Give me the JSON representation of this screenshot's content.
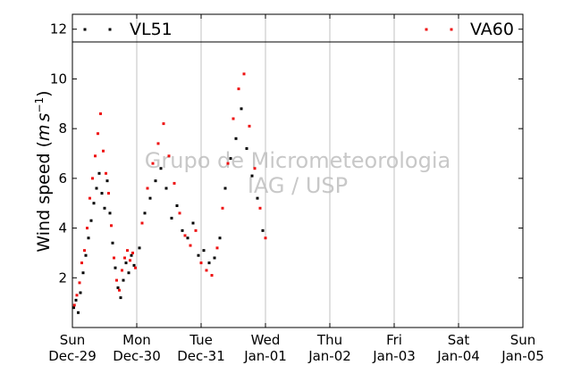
{
  "chart_data": {
    "type": "scatter",
    "ylabel": "Wind speed ($m s^{-1}$)",
    "ylabel_parts": {
      "text": "Wind speed (",
      "unit_m": "m",
      "unit_s": "s",
      "exponent": "−1",
      "close": ")"
    },
    "ylim": [
      0,
      12.6
    ],
    "yticks": [
      2,
      4,
      6,
      8,
      10,
      12
    ],
    "xlim": [
      "2019-12-29",
      "2020-01-05"
    ],
    "xtick_labels": [
      [
        "Sun",
        "Dec-29"
      ],
      [
        "Mon",
        "Dec-30"
      ],
      [
        "Tue",
        "Dec-31"
      ],
      [
        "Wed",
        "Jan-01"
      ],
      [
        "Thu",
        "Jan-02"
      ],
      [
        "Fri",
        "Jan-03"
      ],
      [
        "Sat",
        "Jan-04"
      ],
      [
        "Sun",
        "Jan-05"
      ]
    ],
    "grid": "vertical",
    "legend_placement": "top",
    "watermark": [
      "Grupo de Micrometeorologia",
      "IAG / USP"
    ],
    "series": [
      {
        "name": "VL51",
        "color": "#000000",
        "points": [
          [
            "2019-12-29 00:30",
            0.8
          ],
          [
            "2019-12-29 01:20",
            1.1
          ],
          [
            "2019-12-29 02:10",
            0.6
          ],
          [
            "2019-12-29 03:00",
            1.4
          ],
          [
            "2019-12-29 04:00",
            2.2
          ],
          [
            "2019-12-29 05:00",
            2.9
          ],
          [
            "2019-12-29 06:00",
            3.6
          ],
          [
            "2019-12-29 07:00",
            4.3
          ],
          [
            "2019-12-29 08:00",
            5.0
          ],
          [
            "2019-12-29 09:00",
            5.6
          ],
          [
            "2019-12-29 10:00",
            6.2
          ],
          [
            "2019-12-29 11:00",
            5.4
          ],
          [
            "2019-12-29 12:00",
            4.8
          ],
          [
            "2019-12-29 13:00",
            5.9
          ],
          [
            "2019-12-29 14:00",
            4.6
          ],
          [
            "2019-12-29 15:00",
            3.4
          ],
          [
            "2019-12-29 16:00",
            2.4
          ],
          [
            "2019-12-29 17:00",
            1.6
          ],
          [
            "2019-12-29 18:00",
            1.2
          ],
          [
            "2019-12-29 19:00",
            1.9
          ],
          [
            "2019-12-29 20:00",
            2.6
          ],
          [
            "2019-12-29 21:00",
            2.2
          ],
          [
            "2019-12-29 22:00",
            2.9
          ],
          [
            "2019-12-29 23:00",
            2.5
          ],
          [
            "2019-12-30 01:00",
            3.2
          ],
          [
            "2019-12-30 03:00",
            4.6
          ],
          [
            "2019-12-30 05:00",
            5.2
          ],
          [
            "2019-12-30 07:00",
            5.9
          ],
          [
            "2019-12-30 09:00",
            6.4
          ],
          [
            "2019-12-30 11:00",
            5.6
          ],
          [
            "2019-12-30 13:00",
            4.4
          ],
          [
            "2019-12-30 15:00",
            4.9
          ],
          [
            "2019-12-30 17:00",
            3.9
          ],
          [
            "2019-12-30 19:00",
            3.6
          ],
          [
            "2019-12-30 21:00",
            4.2
          ],
          [
            "2019-12-30 23:00",
            2.9
          ],
          [
            "2019-12-31 01:00",
            3.1
          ],
          [
            "2019-12-31 03:00",
            2.6
          ],
          [
            "2019-12-31 05:00",
            2.8
          ],
          [
            "2019-12-31 07:00",
            3.6
          ],
          [
            "2019-12-31 09:00",
            5.6
          ],
          [
            "2019-12-31 11:00",
            6.8
          ],
          [
            "2019-12-31 13:00",
            7.6
          ],
          [
            "2019-12-31 15:00",
            8.8
          ],
          [
            "2019-12-31 17:00",
            7.2
          ],
          [
            "2019-12-31 19:00",
            6.1
          ],
          [
            "2019-12-31 21:00",
            5.2
          ],
          [
            "2019-12-31 23:00",
            3.9
          ]
        ]
      },
      {
        "name": "VA60",
        "color": "#ee1111",
        "points": [
          [
            "2019-12-29 00:45",
            0.9
          ],
          [
            "2019-12-29 01:40",
            1.3
          ],
          [
            "2019-12-29 02:40",
            1.8
          ],
          [
            "2019-12-29 03:30",
            2.6
          ],
          [
            "2019-12-29 04:30",
            3.1
          ],
          [
            "2019-12-29 05:30",
            4.0
          ],
          [
            "2019-12-29 06:30",
            5.2
          ],
          [
            "2019-12-29 07:30",
            6.0
          ],
          [
            "2019-12-29 08:30",
            6.9
          ],
          [
            "2019-12-29 09:30",
            7.8
          ],
          [
            "2019-12-29 10:30",
            8.6
          ],
          [
            "2019-12-29 11:30",
            7.1
          ],
          [
            "2019-12-29 12:30",
            6.2
          ],
          [
            "2019-12-29 13:30",
            5.4
          ],
          [
            "2019-12-29 14:30",
            4.1
          ],
          [
            "2019-12-29 15:30",
            2.8
          ],
          [
            "2019-12-29 16:30",
            1.9
          ],
          [
            "2019-12-29 17:30",
            1.5
          ],
          [
            "2019-12-29 18:30",
            2.3
          ],
          [
            "2019-12-29 19:30",
            2.8
          ],
          [
            "2019-12-29 20:30",
            3.1
          ],
          [
            "2019-12-29 21:30",
            2.7
          ],
          [
            "2019-12-29 22:30",
            3.0
          ],
          [
            "2019-12-29 23:30",
            2.4
          ],
          [
            "2019-12-30 02:00",
            4.2
          ],
          [
            "2019-12-30 04:00",
            5.6
          ],
          [
            "2019-12-30 06:00",
            6.6
          ],
          [
            "2019-12-30 08:00",
            7.4
          ],
          [
            "2019-12-30 10:00",
            8.2
          ],
          [
            "2019-12-30 12:00",
            6.9
          ],
          [
            "2019-12-30 14:00",
            5.8
          ],
          [
            "2019-12-30 16:00",
            4.6
          ],
          [
            "2019-12-30 18:00",
            3.7
          ],
          [
            "2019-12-30 20:00",
            3.3
          ],
          [
            "2019-12-30 22:00",
            3.9
          ],
          [
            "2019-12-31 00:00",
            2.6
          ],
          [
            "2019-12-31 02:00",
            2.3
          ],
          [
            "2019-12-31 04:00",
            2.1
          ],
          [
            "2019-12-31 06:00",
            3.2
          ],
          [
            "2019-12-31 08:00",
            4.8
          ],
          [
            "2019-12-31 10:00",
            6.6
          ],
          [
            "2019-12-31 12:00",
            8.4
          ],
          [
            "2019-12-31 14:00",
            9.6
          ],
          [
            "2019-12-31 16:00",
            10.2
          ],
          [
            "2019-12-31 18:00",
            8.1
          ],
          [
            "2019-12-31 20:00",
            6.4
          ],
          [
            "2019-12-31 22:00",
            4.8
          ],
          [
            "2020-01-01 00:00",
            3.6
          ]
        ]
      }
    ]
  }
}
